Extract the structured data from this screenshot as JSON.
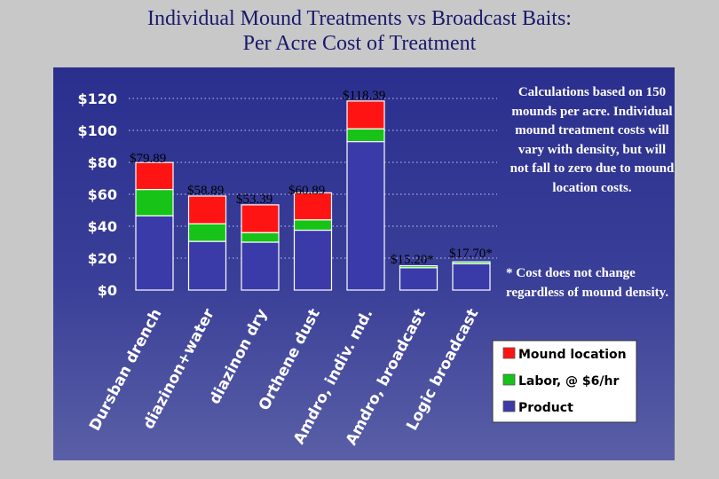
{
  "title_line1": "Individual Mound Treatments vs Broadcast Baits:",
  "title_line2": "Per Acre Cost of Treatment",
  "note_calc": "Calculations based on 150 mounds per acre. Individual mound treatment costs will vary with density, but will not fall to zero due to mound location costs.",
  "note_broadcast": "* Cost does not change regardless of mound density.",
  "colors": {
    "product": "#3a3aa8",
    "labor": "#16c316",
    "mound_location": "#ff1414",
    "panel": "#3a3f98"
  },
  "chart_data": {
    "type": "bar",
    "stacked": true,
    "categories": [
      "Dursban drench",
      "diazinon+water",
      "diazinon dry",
      "Orthene dust",
      "Amdro, indiv. md.",
      "Amdro, broadcast",
      "Logic broadcast"
    ],
    "series": [
      {
        "name": "Product",
        "values": [
          46.5,
          30.5,
          30.0,
          37.5,
          93.0,
          14.0,
          16.5
        ]
      },
      {
        "name": "Labor, @ $6/hr",
        "values": [
          16.5,
          11.0,
          6.0,
          6.5,
          8.0,
          1.2,
          1.2
        ]
      },
      {
        "name": "Mound location",
        "values": [
          16.89,
          17.39,
          17.39,
          16.89,
          17.39,
          0,
          0
        ]
      }
    ],
    "totals_labels": [
      "$79.89",
      "$58.89",
      "$53.39",
      "$60.89",
      "$118.39",
      "$15.20*",
      "$17.70*"
    ],
    "y_ticks": [
      "$0",
      "$20",
      "$40",
      "$60",
      "$80",
      "$100",
      "$120"
    ],
    "ylim": [
      0,
      120
    ],
    "grid": true,
    "legend_position": "bottom-right"
  }
}
